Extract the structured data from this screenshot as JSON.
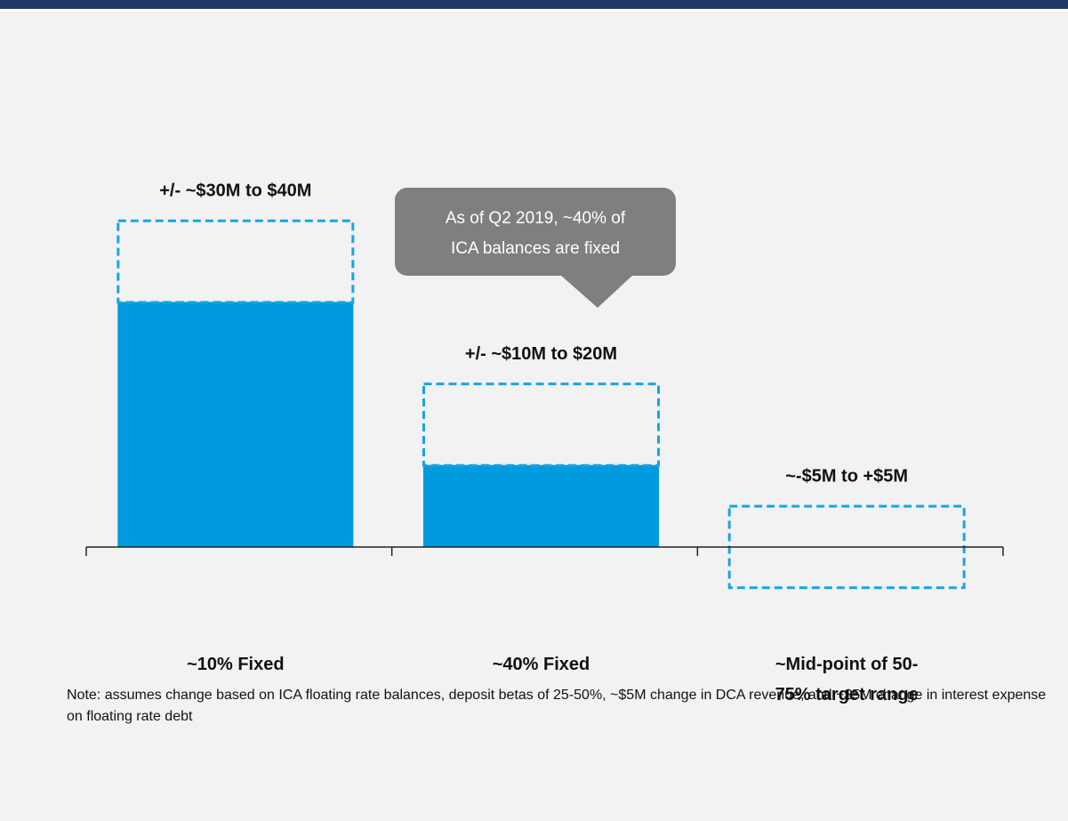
{
  "chart_data": {
    "type": "range-bar",
    "categories": [
      "~10% Fixed",
      "~40% Fixed",
      "~Mid-point of 50-75% target range"
    ],
    "values": [
      30,
      10,
      0
    ],
    "range_low": [
      30,
      10,
      -5
    ],
    "range_high": [
      40,
      20,
      5
    ],
    "value_labels": [
      "+/- ~$30M to $40M",
      "+/- ~$10M to $20M",
      "~-$5M to +$5M"
    ],
    "color": "#009ade",
    "range_color": "#1aa3e3",
    "ylim": [
      -30,
      65
    ],
    "annotation": [
      "As of Q2 2019, ~40% of",
      "ICA balances are fixed"
    ],
    "note": "Note: assumes change based on ICA floating rate balances, deposit betas of 25-50%, ~$5M  change in DCA revenue, and ~$5M change in interest expense on floating rate debt"
  }
}
